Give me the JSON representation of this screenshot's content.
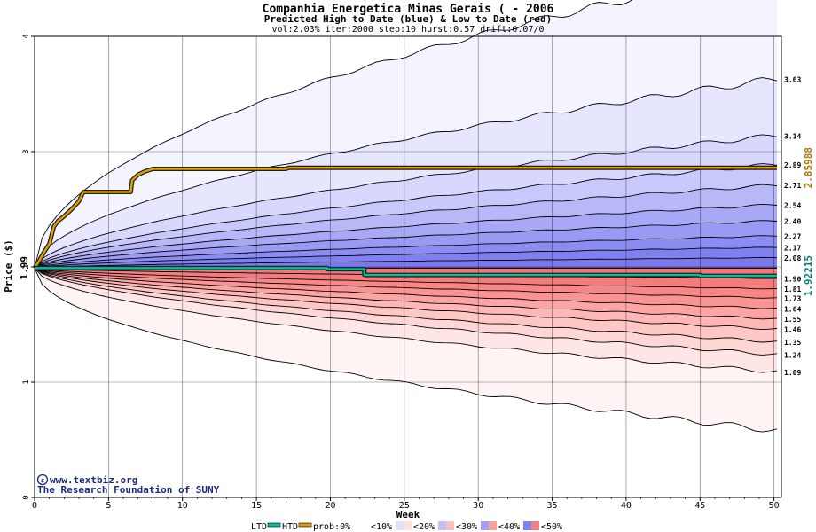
{
  "chart_data": {
    "type": "area",
    "title": "Companhia Energetica Minas Gerais ( - 2006",
    "subtitle": "Predicted High to Date (blue) &  Low to Date (red)",
    "params": "vol:2.03% iter:2000 step:10 hurst:0.57 drift:0.07/0",
    "xlabel": "Week",
    "ylabel": "Price ($)",
    "xlim": [
      0,
      50.5
    ],
    "ylim": [
      0,
      4
    ],
    "x_ticks": [
      0,
      5,
      10,
      15,
      20,
      25,
      30,
      35,
      40,
      45,
      50
    ],
    "y_ticks": [
      0,
      1,
      2,
      3,
      4
    ],
    "start_price": 1.99,
    "start_label": "1.99",
    "upper_curves": [
      {
        "label": "",
        "end": 4.6,
        "k": 0.5,
        "min": 0.5
      },
      {
        "label": "3.63",
        "end": 3.63,
        "k": 0.55,
        "min": 0.6
      },
      {
        "label": "3.14",
        "end": 3.14,
        "k": 0.58,
        "min": 0.65
      },
      {
        "label": "2.89",
        "end": 2.89,
        "k": 0.6,
        "min": 0.7
      },
      {
        "label": "2.71",
        "end": 2.71,
        "k": 0.6,
        "min": 0.7
      },
      {
        "label": "2.54",
        "end": 2.54,
        "k": 0.6,
        "min": 0.7
      },
      {
        "label": "2.40",
        "end": 2.4,
        "k": 0.6,
        "min": 0.7
      },
      {
        "label": "2.27",
        "end": 2.27,
        "k": 0.6,
        "min": 0.7
      },
      {
        "label": "2.17",
        "end": 2.17,
        "k": 0.6,
        "min": 0.7
      },
      {
        "label": "2.08",
        "end": 2.08,
        "k": 0.6,
        "min": 0.7
      }
    ],
    "lower_curves": [
      {
        "label": "1.90",
        "end": 1.9,
        "k": 0.6,
        "min": 0.7
      },
      {
        "label": "1.81",
        "end": 1.81,
        "k": 0.6,
        "min": 0.7
      },
      {
        "label": "1.73",
        "end": 1.73,
        "k": 0.6,
        "min": 0.7
      },
      {
        "label": "1.64",
        "end": 1.64,
        "k": 0.6,
        "min": 0.7
      },
      {
        "label": "1.55",
        "end": 1.55,
        "k": 0.6,
        "min": 0.7
      },
      {
        "label": "1.46",
        "end": 1.46,
        "k": 0.6,
        "min": 0.7
      },
      {
        "label": "1.35",
        "end": 1.35,
        "k": 0.6,
        "min": 0.7
      },
      {
        "label": "1.24",
        "end": 1.24,
        "k": 0.6,
        "min": 0.7
      },
      {
        "label": "1.09",
        "end": 1.09,
        "k": 0.55,
        "min": 0.65
      },
      {
        "label": "",
        "end": 0.58,
        "k": 0.5,
        "min": 0.5
      }
    ],
    "band_colors_upper": [
      "#f4f4ff",
      "#e6e6ff",
      "#d8d8ff",
      "#c8c8fb",
      "#b8b8f8",
      "#a8a8f6",
      "#9a9af4",
      "#8c8cf2",
      "#8080f0",
      "#7a7aee"
    ],
    "band_colors_lower": [
      "#fff4f4",
      "#ffe6e6",
      "#ffd6d6",
      "#ffc6c6",
      "#ffb6b6",
      "#fda4a4",
      "#fa9494",
      "#f88686",
      "#f57c7c",
      "#f07878"
    ],
    "htd_series": {
      "name": "HTD",
      "color": "#e0a000",
      "points": [
        [
          0,
          1.99
        ],
        [
          0.3,
          2.05
        ],
        [
          0.6,
          2.12
        ],
        [
          1.0,
          2.2
        ],
        [
          1.3,
          2.35
        ],
        [
          1.6,
          2.4
        ],
        [
          2.0,
          2.44
        ],
        [
          2.5,
          2.5
        ],
        [
          3.0,
          2.57
        ],
        [
          3.3,
          2.65
        ],
        [
          4.0,
          2.65
        ],
        [
          6.5,
          2.65
        ],
        [
          6.6,
          2.75
        ],
        [
          7.0,
          2.8
        ],
        [
          7.5,
          2.83
        ],
        [
          8.0,
          2.85
        ],
        [
          17.0,
          2.85
        ],
        [
          17.2,
          2.86
        ],
        [
          50.2,
          2.86
        ]
      ],
      "end_label": "2.85988"
    },
    "ltd_series": {
      "name": "LTD",
      "color": "#00c0a0",
      "points": [
        [
          0,
          1.99
        ],
        [
          19.8,
          1.99
        ],
        [
          19.8,
          1.98
        ],
        [
          22.3,
          1.98
        ],
        [
          22.3,
          1.93
        ],
        [
          45,
          1.93
        ],
        [
          45,
          1.922
        ],
        [
          50.2,
          1.922
        ]
      ],
      "end_label": "1.92215"
    },
    "legend": {
      "ltd": "LTD",
      "htd": "HTD",
      "prob": "prob:0%",
      "p10": "<10%",
      "p20": "<20%",
      "p30": "<30%",
      "p40": "<40%",
      "p50": "<50%"
    },
    "watermark_url": "www.textbiz.org",
    "watermark_org": "The Research Foundation of SUNY"
  }
}
